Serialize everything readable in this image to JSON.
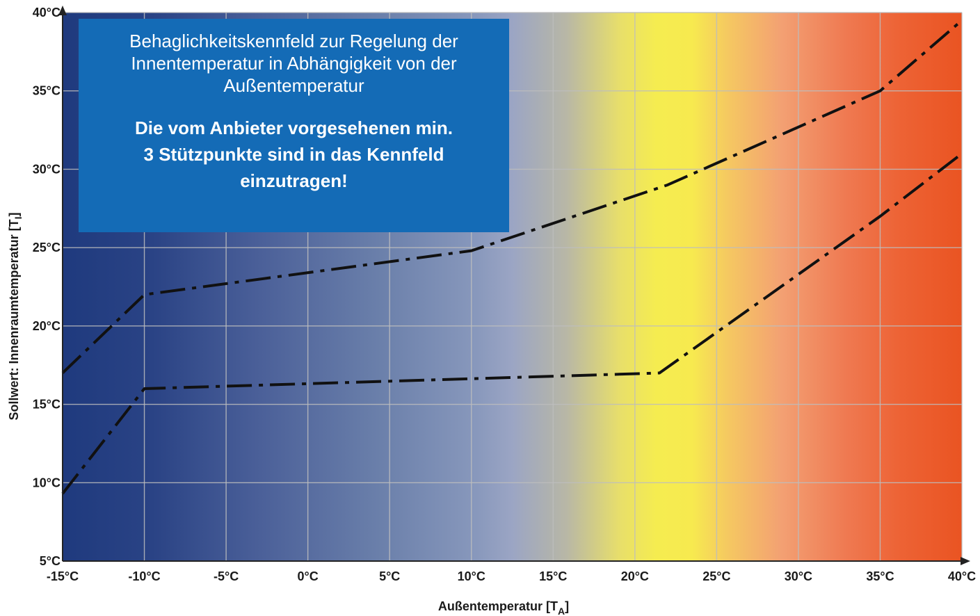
{
  "chart_data": {
    "type": "line",
    "xlabel": "Außentemperatur [T",
    "xlabel_sub": "A",
    "xlabel_close": "]",
    "ylabel": "Sollwert: Innenraumtemperatur [T",
    "ylabel_sub": "I",
    "ylabel_close": "]",
    "xlim": [
      -15,
      40
    ],
    "ylim": [
      5,
      40
    ],
    "x_ticks": [
      -15,
      -10,
      -5,
      0,
      5,
      10,
      15,
      20,
      25,
      30,
      35,
      40
    ],
    "y_ticks": [
      5,
      10,
      15,
      20,
      25,
      30,
      35,
      40
    ],
    "x_tick_labels": [
      "-15°C",
      "-10°C",
      "-5°C",
      "0°C",
      "5°C",
      "10°C",
      "15°C",
      "20°C",
      "25°C",
      "30°C",
      "35°C",
      "40°C"
    ],
    "y_tick_labels": [
      "5°C",
      "10°C",
      "15°C",
      "20°C",
      "25°C",
      "30°C",
      "35°C",
      "40°C"
    ],
    "grid": true,
    "background": "gradient: dark blue (cold) → light blue → yellow (~20°C) → orange/red (hot)",
    "series": [
      {
        "line_style": "dash-dot",
        "color": "#111111",
        "x": [
          -15,
          -10,
          10,
          22,
          35,
          40
        ],
        "y": [
          17,
          22,
          24.8,
          29,
          35,
          39.5
        ]
      },
      {
        "line_style": "dash-dot",
        "color": "#111111",
        "x": [
          -15,
          -10,
          21.5,
          35,
          40
        ],
        "y": [
          9.3,
          16,
          17,
          27,
          31
        ]
      }
    ]
  },
  "info_box": {
    "line1": "Behaglichkeitskennfeld zur Regelung der",
    "line2": "Innentemperatur in Abhängigkeit von der",
    "line3": "Außentemperatur",
    "bold1": "Die vom Anbieter vorgesehenen min.",
    "bold2": "3 Stützpunkte sind in das Kennfeld",
    "bold3": "einzutragen!",
    "background": "#146bb6"
  }
}
